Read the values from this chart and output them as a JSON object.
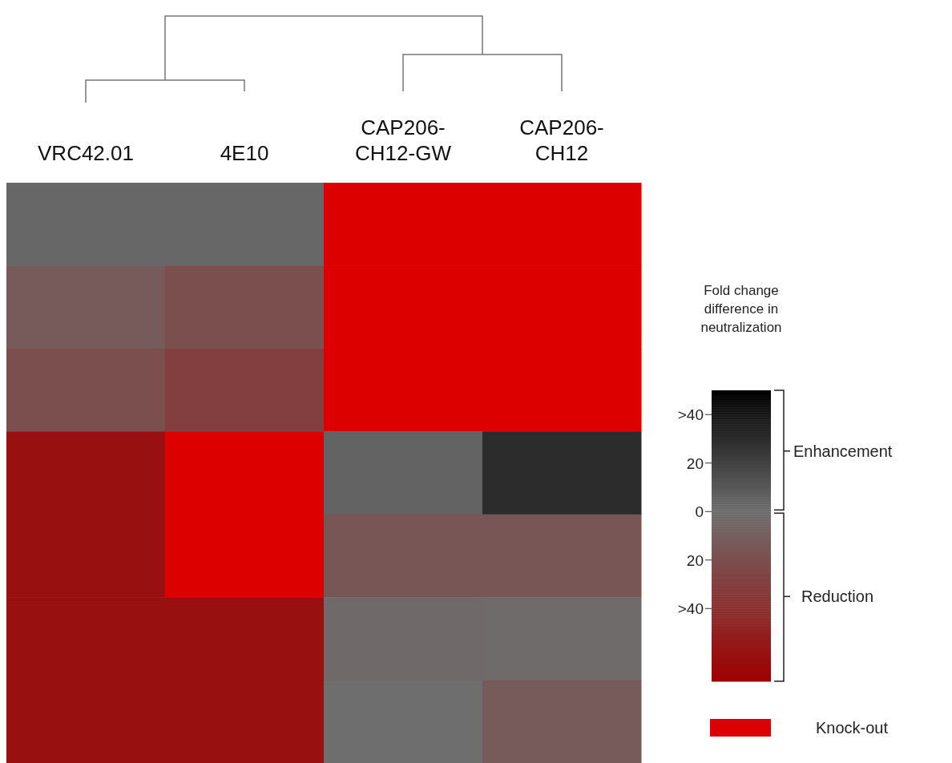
{
  "chart_data": {
    "type": "heatmap",
    "categories": [
      "VRC42.01",
      "4E10",
      "CAP206-CH12-GW",
      "CAP206-CH12"
    ],
    "cells": [
      [
        3,
        3,
        null,
        null
      ],
      [
        -12,
        -20,
        null,
        null
      ],
      [
        -20,
        -30,
        null,
        null
      ],
      [
        -60,
        null,
        5,
        30
      ],
      [
        -60,
        null,
        -15,
        -15
      ],
      [
        -60,
        -60,
        -3,
        -2
      ],
      [
        -60,
        -60,
        0,
        -12
      ]
    ],
    "y_categories": [
      null,
      null,
      null,
      null,
      null,
      null,
      null
    ],
    "clabel": "Fold change difference in neutralization",
    "clim": [
      -70,
      50
    ],
    "cticks": [
      {
        "value": 40,
        "label": ">40"
      },
      {
        "value": 20,
        "label": "20"
      },
      {
        "value": 0,
        "label": "0"
      },
      {
        "value": -20,
        "label": "20"
      },
      {
        "value": -40,
        "label": ">40"
      }
    ],
    "colors": [
      "#a00000",
      "#6e6e6e",
      "#000000"
    ],
    "color": "#dd0000",
    "annotations": [
      "Enhancement",
      "Reduction",
      "Knock-out"
    ]
  }
}
